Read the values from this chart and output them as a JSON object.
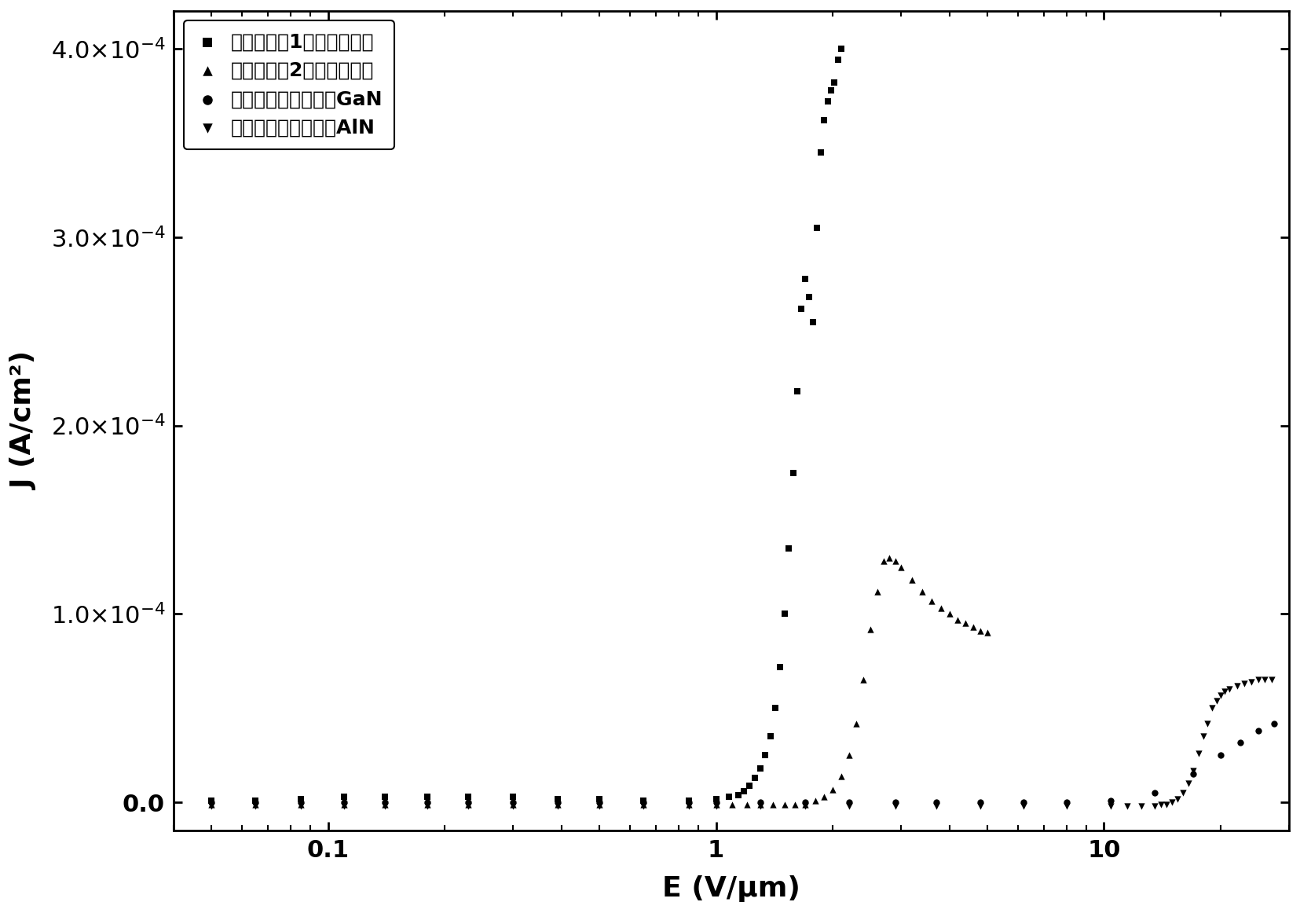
{
  "title": "",
  "xlabel": "E (V/μm)",
  "ylabel": "J (A/cm²)",
  "xlim": [
    0.04,
    30
  ],
  "ylim": [
    -1.5e-05,
    0.00042
  ],
  "yticks": [
    0.0,
    0.0001,
    0.0002,
    0.0003,
    0.0004
  ],
  "legend_labels": [
    "采取实施例1制备的混合相",
    "采取实施例2制备的混合相",
    "未采用本发明制备的GaN",
    "未采用本发明制备的AlN"
  ],
  "series1_x": [
    0.05,
    0.065,
    0.085,
    0.11,
    0.14,
    0.18,
    0.23,
    0.3,
    0.39,
    0.5,
    0.65,
    0.85,
    1.0,
    1.08,
    1.14,
    1.18,
    1.22,
    1.26,
    1.3,
    1.34,
    1.38,
    1.42,
    1.46,
    1.5,
    1.54,
    1.58,
    1.62,
    1.66,
    1.7,
    1.74,
    1.78,
    1.82,
    1.86,
    1.9,
    1.94,
    1.98,
    2.02,
    2.06,
    2.1
  ],
  "series1_y": [
    1e-06,
    1e-06,
    2e-06,
    3e-06,
    3e-06,
    3e-06,
    3e-06,
    3e-06,
    2e-06,
    2e-06,
    1e-06,
    1e-06,
    2e-06,
    3e-06,
    4e-06,
    6e-06,
    9e-06,
    1.3e-05,
    1.8e-05,
    2.5e-05,
    3.5e-05,
    5e-05,
    7.2e-05,
    0.0001,
    0.000135,
    0.000175,
    0.000218,
    0.000262,
    0.000278,
    0.000268,
    0.000255,
    0.000305,
    0.000345,
    0.000362,
    0.000372,
    0.000378,
    0.000382,
    0.000394,
    0.0004
  ],
  "series2_x": [
    0.05,
    0.065,
    0.085,
    0.11,
    0.14,
    0.18,
    0.23,
    0.3,
    0.39,
    0.5,
    0.65,
    0.85,
    1.0,
    1.1,
    1.2,
    1.3,
    1.4,
    1.5,
    1.6,
    1.7,
    1.8,
    1.9,
    2.0,
    2.1,
    2.2,
    2.3,
    2.4,
    2.5,
    2.6,
    2.7,
    2.8,
    2.9,
    3.0,
    3.2,
    3.4,
    3.6,
    3.8,
    4.0,
    4.2,
    4.4,
    4.6,
    4.8,
    5.0
  ],
  "series2_y": [
    -1e-06,
    -1e-06,
    -1e-06,
    -1e-06,
    -1e-06,
    -1e-06,
    -1e-06,
    -1e-06,
    -1e-06,
    -1e-06,
    -1e-06,
    -1e-06,
    -1e-06,
    -1e-06,
    -1e-06,
    -1e-06,
    -1e-06,
    -1e-06,
    -1e-06,
    -1e-06,
    1e-06,
    3e-06,
    7e-06,
    1.4e-05,
    2.5e-05,
    4.2e-05,
    6.5e-05,
    9.2e-05,
    0.000112,
    0.000128,
    0.00013,
    0.000128,
    0.000125,
    0.000118,
    0.000112,
    0.000107,
    0.000103,
    0.0001,
    9.7e-05,
    9.5e-05,
    9.3e-05,
    9.1e-05,
    9e-05
  ],
  "series3_x": [
    0.05,
    0.065,
    0.085,
    0.11,
    0.14,
    0.18,
    0.23,
    0.3,
    0.39,
    0.5,
    0.65,
    0.85,
    1.0,
    1.3,
    1.7,
    2.2,
    2.9,
    3.7,
    4.8,
    6.2,
    8.0,
    10.4,
    13.5,
    17.0,
    20.0,
    22.5,
    25.0,
    27.5
  ],
  "series3_y": [
    0.0,
    0.0,
    0.0,
    0.0,
    0.0,
    0.0,
    0.0,
    0.0,
    0.0,
    0.0,
    0.0,
    0.0,
    0.0,
    0.0,
    0.0,
    0.0,
    0.0,
    0.0,
    0.0,
    0.0,
    0.0,
    1e-06,
    5e-06,
    1.5e-05,
    2.5e-05,
    3.2e-05,
    3.8e-05,
    4.2e-05
  ],
  "series4_x": [
    0.05,
    0.065,
    0.085,
    0.11,
    0.14,
    0.18,
    0.23,
    0.3,
    0.39,
    0.5,
    0.65,
    0.85,
    1.0,
    1.3,
    1.7,
    2.2,
    2.9,
    3.7,
    4.8,
    6.2,
    8.0,
    10.4,
    11.5,
    12.5,
    13.5,
    14.0,
    14.5,
    15.0,
    15.5,
    16.0,
    16.5,
    17.0,
    17.5,
    18.0,
    18.5,
    19.0,
    19.5,
    20.0,
    20.5,
    21.0,
    22.0,
    23.0,
    24.0,
    25.0,
    26.0,
    27.0
  ],
  "series4_y": [
    -2e-06,
    -2e-06,
    -2e-06,
    -2e-06,
    -2e-06,
    -2e-06,
    -2e-06,
    -2e-06,
    -2e-06,
    -2e-06,
    -2e-06,
    -2e-06,
    -2e-06,
    -2e-06,
    -2e-06,
    -2e-06,
    -2e-06,
    -2e-06,
    -2e-06,
    -2e-06,
    -2e-06,
    -2e-06,
    -2e-06,
    -2e-06,
    -2e-06,
    -1e-06,
    -1e-06,
    0.0,
    2e-06,
    5e-06,
    1e-05,
    1.7e-05,
    2.6e-05,
    3.5e-05,
    4.2e-05,
    5e-05,
    5.4e-05,
    5.7e-05,
    5.9e-05,
    6e-05,
    6.2e-05,
    6.3e-05,
    6.4e-05,
    6.5e-05,
    6.5e-05,
    6.5e-05
  ],
  "marker_size": 36,
  "font_size": 22,
  "axis_font_size": 26,
  "legend_font_size": 18
}
